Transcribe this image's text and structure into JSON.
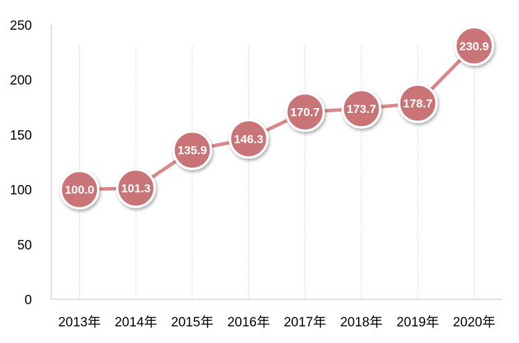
{
  "chart_data": {
    "type": "line",
    "title": "",
    "xlabel": "",
    "ylabel": "",
    "categories": [
      "2013年",
      "2014年",
      "2015年",
      "2016年",
      "2017年",
      "2018年",
      "2019年",
      "2020年"
    ],
    "series": [
      {
        "values": [
          100.0,
          101.3,
          135.9,
          146.3,
          170.7,
          173.7,
          178.7,
          230.9
        ],
        "labels": [
          "100.0",
          "101.3",
          "135.9",
          "146.3",
          "170.7",
          "173.7",
          "178.7",
          "230.9"
        ]
      }
    ],
    "ylim": [
      0,
      250
    ],
    "yticks": [
      0,
      50,
      100,
      150,
      200,
      250
    ],
    "grid": "vertical dashed at categories",
    "legend": "none",
    "colors": {
      "line": "#d9888a",
      "marker": "#c97478",
      "marker_border": "#ffffff",
      "axis": "#bfbfbf",
      "grid": "#d0d0d0"
    }
  }
}
